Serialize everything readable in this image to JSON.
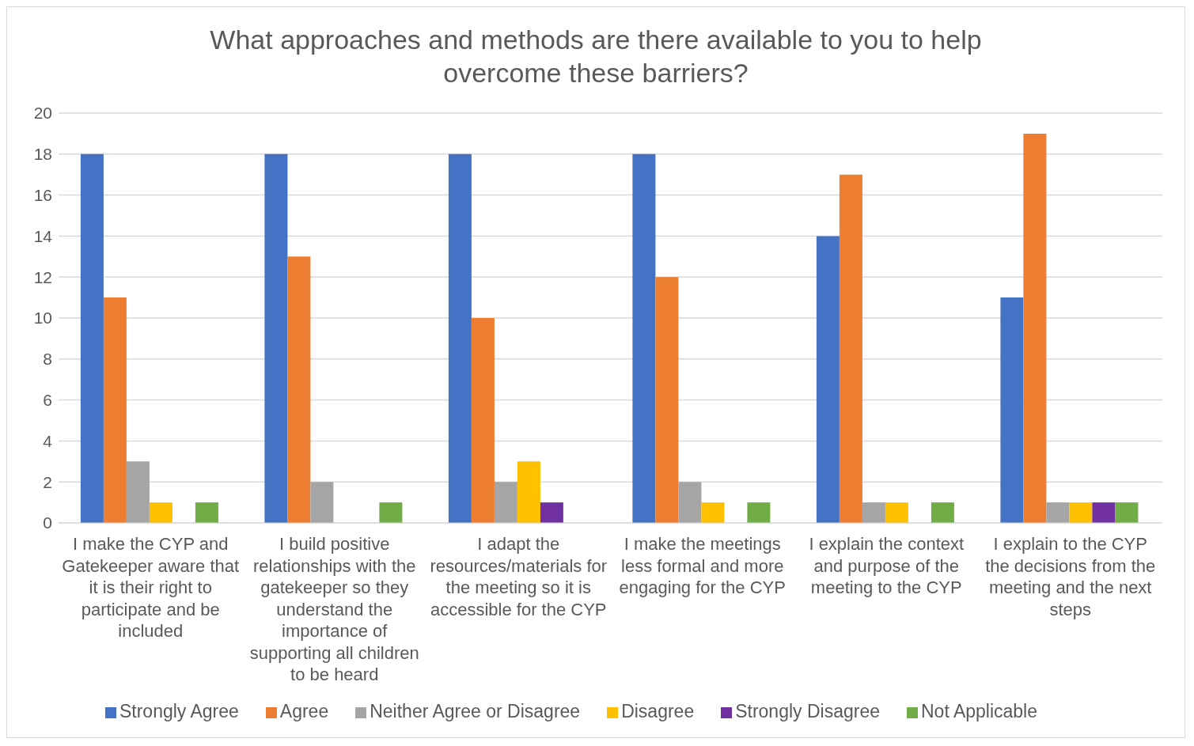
{
  "chart_data": {
    "type": "bar",
    "title": "What approaches and methods are there available to you to help overcome these barriers?",
    "categories": [
      "I make the CYP and Gatekeeper aware that it is their right to participate and be included",
      "I build positive relationships with the gatekeeper so they understand the importance of supporting all children to be heard",
      "I adapt the resources/materials for the meeting so it is accessible for the CYP",
      "I make the meetings less formal and more engaging for the CYP",
      "I explain the context and purpose of the meeting to the CYP",
      "I explain to the CYP the decisions from the meeting and the next steps"
    ],
    "series": [
      {
        "name": "Strongly Agree",
        "color": "#4472c4",
        "values": [
          18,
          18,
          18,
          18,
          14,
          11
        ]
      },
      {
        "name": "Agree",
        "color": "#ed7d31",
        "values": [
          11,
          13,
          10,
          12,
          17,
          19
        ]
      },
      {
        "name": "Neither Agree or Disagree",
        "color": "#a5a5a5",
        "values": [
          3,
          2,
          2,
          2,
          1,
          1
        ]
      },
      {
        "name": "Disagree",
        "color": "#ffc000",
        "values": [
          1,
          0,
          3,
          1,
          1,
          1
        ]
      },
      {
        "name": "Strongly Disagree",
        "color": "#7030a0",
        "values": [
          0,
          0,
          1,
          0,
          0,
          1
        ]
      },
      {
        "name": "Not Applicable",
        "color": "#70ad47",
        "values": [
          1,
          1,
          0,
          1,
          1,
          1
        ]
      }
    ],
    "ylim": [
      0,
      20
    ],
    "yticks": [
      0,
      2,
      4,
      6,
      8,
      10,
      12,
      14,
      16,
      18,
      20
    ],
    "grid": "y",
    "legend": "bottom"
  }
}
